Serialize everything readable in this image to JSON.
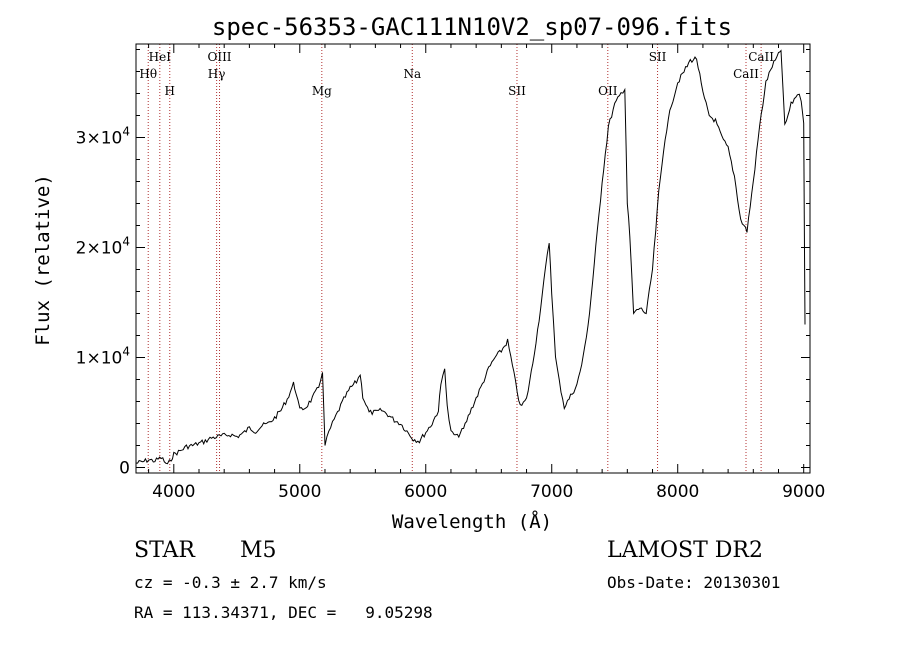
{
  "chart_data": {
    "type": "line",
    "title": "spec-56353-GAC111N10V2_sp07-096.fits",
    "xlabel": "Wavelength (Å)",
    "ylabel": "Flux (relative)",
    "xlim": [
      3700,
      9050
    ],
    "ylim": [
      -500,
      38500
    ],
    "x_ticks": [
      4000,
      5000,
      6000,
      7000,
      8000,
      9000
    ],
    "y_ticks": [
      {
        "value": 0,
        "mantissa": "0",
        "exponent": ""
      },
      {
        "value": 10000,
        "mantissa": "1×10",
        "exponent": "4"
      },
      {
        "value": 20000,
        "mantissa": "2×10",
        "exponent": "4"
      },
      {
        "value": 30000,
        "mantissa": "3×10",
        "exponent": "4"
      }
    ],
    "grid": false,
    "series": [
      {
        "color": "#000000",
        "points": [
          [
            3700,
            400
          ],
          [
            3750,
            500
          ],
          [
            3800,
            700
          ],
          [
            3850,
            600
          ],
          [
            3900,
            900
          ],
          [
            3950,
            200
          ],
          [
            3980,
            800
          ],
          [
            4000,
            1200
          ],
          [
            4050,
            1500
          ],
          [
            4100,
            1900
          ],
          [
            4150,
            2000
          ],
          [
            4200,
            2200
          ],
          [
            4250,
            2400
          ],
          [
            4300,
            2700
          ],
          [
            4350,
            2800
          ],
          [
            4400,
            2900
          ],
          [
            4450,
            3000
          ],
          [
            4500,
            2800
          ],
          [
            4550,
            3100
          ],
          [
            4600,
            3600
          ],
          [
            4650,
            3300
          ],
          [
            4700,
            3800
          ],
          [
            4750,
            4000
          ],
          [
            4800,
            4500
          ],
          [
            4850,
            5200
          ],
          [
            4900,
            6200
          ],
          [
            4950,
            7600
          ],
          [
            4970,
            6900
          ],
          [
            5000,
            5200
          ],
          [
            5050,
            5500
          ],
          [
            5100,
            6300
          ],
          [
            5150,
            7300
          ],
          [
            5180,
            8800
          ],
          [
            5200,
            2000
          ],
          [
            5230,
            3200
          ],
          [
            5260,
            4000
          ],
          [
            5300,
            5000
          ],
          [
            5350,
            6200
          ],
          [
            5400,
            7200
          ],
          [
            5450,
            7800
          ],
          [
            5480,
            8500
          ],
          [
            5500,
            6500
          ],
          [
            5550,
            5000
          ],
          [
            5600,
            5000
          ],
          [
            5650,
            5200
          ],
          [
            5700,
            4800
          ],
          [
            5750,
            4300
          ],
          [
            5800,
            4000
          ],
          [
            5850,
            3300
          ],
          [
            5900,
            2600
          ],
          [
            5950,
            2400
          ],
          [
            6000,
            3200
          ],
          [
            6050,
            4000
          ],
          [
            6100,
            5200
          ],
          [
            6120,
            7500
          ],
          [
            6150,
            9200
          ],
          [
            6170,
            5500
          ],
          [
            6200,
            3200
          ],
          [
            6250,
            2800
          ],
          [
            6300,
            3500
          ],
          [
            6350,
            5000
          ],
          [
            6400,
            6300
          ],
          [
            6450,
            7600
          ],
          [
            6500,
            9000
          ],
          [
            6550,
            10000
          ],
          [
            6600,
            10600
          ],
          [
            6650,
            11500
          ],
          [
            6700,
            8500
          ],
          [
            6750,
            5500
          ],
          [
            6800,
            6200
          ],
          [
            6850,
            9500
          ],
          [
            6900,
            13500
          ],
          [
            6950,
            18000
          ],
          [
            6980,
            20500
          ],
          [
            7000,
            16000
          ],
          [
            7030,
            10000
          ],
          [
            7060,
            7800
          ],
          [
            7100,
            5500
          ],
          [
            7150,
            6500
          ],
          [
            7200,
            7500
          ],
          [
            7250,
            10000
          ],
          [
            7300,
            14000
          ],
          [
            7350,
            20000
          ],
          [
            7400,
            26000
          ],
          [
            7450,
            31000
          ],
          [
            7500,
            33000
          ],
          [
            7550,
            34000
          ],
          [
            7580,
            34500
          ],
          [
            7600,
            24000
          ],
          [
            7620,
            21000
          ],
          [
            7650,
            14000
          ],
          [
            7700,
            14500
          ],
          [
            7750,
            14000
          ],
          [
            7800,
            18000
          ],
          [
            7850,
            25000
          ],
          [
            7900,
            30000
          ],
          [
            7950,
            33000
          ],
          [
            8000,
            35000
          ],
          [
            8050,
            36000
          ],
          [
            8100,
            37000
          ],
          [
            8150,
            37200
          ],
          [
            8200,
            34000
          ],
          [
            8250,
            32000
          ],
          [
            8300,
            31500
          ],
          [
            8350,
            30000
          ],
          [
            8400,
            29000
          ],
          [
            8450,
            26500
          ],
          [
            8500,
            22500
          ],
          [
            8550,
            21500
          ],
          [
            8600,
            26000
          ],
          [
            8650,
            31000
          ],
          [
            8700,
            35000
          ],
          [
            8750,
            36500
          ],
          [
            8800,
            37500
          ],
          [
            8820,
            38000
          ],
          [
            8850,
            31000
          ],
          [
            8900,
            33000
          ],
          [
            8950,
            34000
          ],
          [
            8980,
            33500
          ],
          [
            9000,
            31500
          ],
          [
            9010,
            13000
          ]
        ]
      }
    ],
    "lines": [
      {
        "x": 3797,
        "label": "Hθ",
        "row": 2
      },
      {
        "x": 3889,
        "label": "HeI",
        "row": 1
      },
      {
        "x": 3968,
        "label": "H",
        "row": 3
      },
      {
        "x": 4340,
        "label": "Hγ",
        "row": 2
      },
      {
        "x": 4363,
        "label": "OIII",
        "row": 1
      },
      {
        "x": 5175,
        "label": "Mg",
        "row": 3
      },
      {
        "x": 5893,
        "label": "Na",
        "row": 2
      },
      {
        "x": 6724,
        "label": "SII",
        "row": 3
      },
      {
        "x": 7445,
        "label": "OII",
        "row": 3
      },
      {
        "x": 7840,
        "label": "SII",
        "row": 1
      },
      {
        "x": 8542,
        "label": "CaII",
        "row": 2
      },
      {
        "x": 8662,
        "label": "CaII",
        "row": 1
      }
    ]
  },
  "info": {
    "class_label": "STAR",
    "subclass": "M5",
    "survey": "LAMOST DR2",
    "cz_text": "cz = -0.3 ± 2.7 km/s",
    "obs_date_text": "Obs-Date: 20130301",
    "radec_text": "RA = 113.34371, DEC =   9.05298"
  }
}
